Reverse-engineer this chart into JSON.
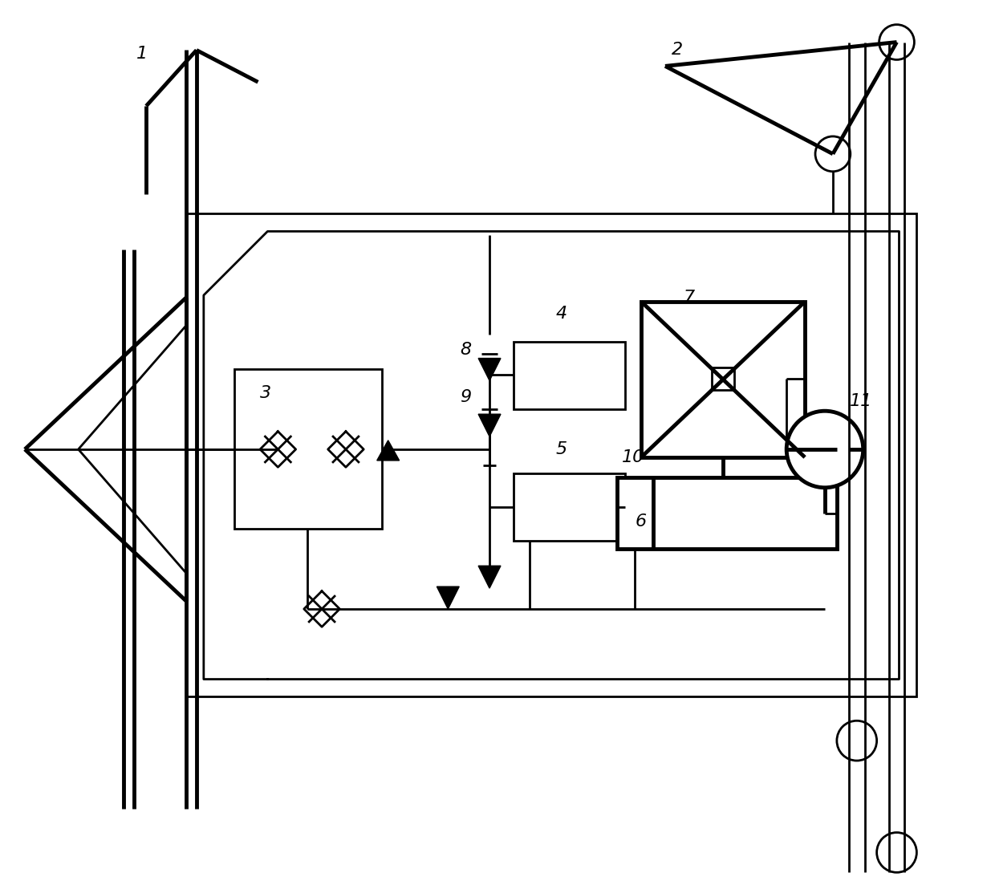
{
  "bg_color": "#ffffff",
  "line_color": "#000000",
  "lw": 2.0,
  "lw_thick": 3.5,
  "fig_width": 12.4,
  "fig_height": 11.13
}
